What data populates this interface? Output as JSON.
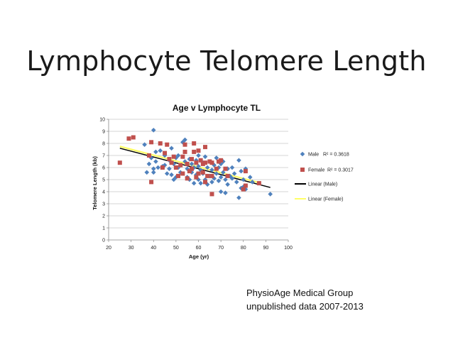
{
  "slide": {
    "title": "Lymphocyte Telomere Length",
    "footnote_line1": "PhysioAge Medical Group",
    "footnote_line2": "unpublished data 2007-2013"
  },
  "chart_data": {
    "type": "scatter",
    "title": "Age v Lymphocyte TL",
    "xlabel": "Age (yr)",
    "ylabel": "Telomere Length (kb)",
    "xlim": [
      20,
      100
    ],
    "ylim": [
      0,
      10
    ],
    "xticks": [
      20,
      30,
      40,
      50,
      60,
      70,
      80,
      90,
      100
    ],
    "yticks": [
      0,
      1,
      2,
      3,
      4,
      5,
      6,
      7,
      8,
      9,
      10
    ],
    "grid": "horizontal",
    "legend_position": "right",
    "series": [
      {
        "name": "Male",
        "r2_label": "R² = 0.3618",
        "marker": "diamond",
        "color": "#4F81BD",
        "points": [
          [
            40,
            9.1
          ],
          [
            36,
            7.9
          ],
          [
            37,
            5.6
          ],
          [
            38,
            6.3
          ],
          [
            39,
            6.8
          ],
          [
            40,
            5.9
          ],
          [
            40,
            5.6
          ],
          [
            41,
            6.5
          ],
          [
            41,
            7.3
          ],
          [
            42,
            6.0
          ],
          [
            43,
            7.4
          ],
          [
            44,
            6.1
          ],
          [
            45,
            7.0
          ],
          [
            45,
            6.2
          ],
          [
            46,
            5.5
          ],
          [
            47,
            6.6
          ],
          [
            47,
            5.9
          ],
          [
            48,
            7.6
          ],
          [
            48,
            5.4
          ],
          [
            49,
            6.3
          ],
          [
            49,
            5.0
          ],
          [
            50,
            6.8
          ],
          [
            50,
            5.2
          ],
          [
            51,
            7.0
          ],
          [
            51,
            6.0
          ],
          [
            52,
            5.6
          ],
          [
            53,
            8.1
          ],
          [
            54,
            8.3
          ],
          [
            54,
            6.5
          ],
          [
            55,
            5.9
          ],
          [
            55,
            5.2
          ],
          [
            56,
            6.7
          ],
          [
            56,
            5.0
          ],
          [
            57,
            6.3
          ],
          [
            57,
            5.6
          ],
          [
            58,
            6.0
          ],
          [
            58,
            4.7
          ],
          [
            59,
            6.6
          ],
          [
            59,
            5.4
          ],
          [
            60,
            7.0
          ],
          [
            60,
            6.1
          ],
          [
            60,
            5.0
          ],
          [
            61,
            5.8
          ],
          [
            61,
            4.7
          ],
          [
            62,
            6.4
          ],
          [
            62,
            5.5
          ],
          [
            63,
            6.9
          ],
          [
            63,
            5.0
          ],
          [
            64,
            6.0
          ],
          [
            64,
            4.6
          ],
          [
            65,
            6.5
          ],
          [
            65,
            5.3
          ],
          [
            66,
            5.8
          ],
          [
            66,
            4.8
          ],
          [
            67,
            6.2
          ],
          [
            67,
            5.1
          ],
          [
            68,
            6.8
          ],
          [
            68,
            5.5
          ],
          [
            69,
            6.0
          ],
          [
            69,
            4.9
          ],
          [
            70,
            6.3
          ],
          [
            70,
            5.2
          ],
          [
            70,
            4.0
          ],
          [
            71,
            6.5
          ],
          [
            71,
            5.6
          ],
          [
            72,
            5.0
          ],
          [
            72,
            3.9
          ],
          [
            73,
            5.9
          ],
          [
            73,
            4.6
          ],
          [
            74,
            5.3
          ],
          [
            75,
            6.0
          ],
          [
            75,
            5.1
          ],
          [
            76,
            5.5
          ],
          [
            77,
            4.8
          ],
          [
            78,
            6.6
          ],
          [
            78,
            3.5
          ],
          [
            79,
            5.7
          ],
          [
            79,
            4.3
          ],
          [
            80,
            5.0
          ],
          [
            80,
            4.4
          ],
          [
            81,
            5.9
          ],
          [
            81,
            4.2
          ],
          [
            83,
            5.2
          ],
          [
            84,
            4.8
          ],
          [
            92,
            3.8
          ]
        ]
      },
      {
        "name": "Female",
        "r2_label": "R² = 0.3017",
        "marker": "square",
        "color": "#C0504D",
        "points": [
          [
            25,
            6.4
          ],
          [
            29,
            8.4
          ],
          [
            31,
            8.5
          ],
          [
            38,
            7.0
          ],
          [
            39,
            8.1
          ],
          [
            39,
            4.8
          ],
          [
            43,
            8.0
          ],
          [
            44,
            6.0
          ],
          [
            45,
            7.2
          ],
          [
            46,
            7.9
          ],
          [
            47,
            6.7
          ],
          [
            48,
            6.4
          ],
          [
            49,
            6.9
          ],
          [
            50,
            6.0
          ],
          [
            51,
            5.3
          ],
          [
            52,
            6.2
          ],
          [
            53,
            6.9
          ],
          [
            53,
            5.5
          ],
          [
            54,
            7.3
          ],
          [
            54,
            7.9
          ],
          [
            55,
            6.3
          ],
          [
            55,
            5.1
          ],
          [
            56,
            5.7
          ],
          [
            57,
            5.9
          ],
          [
            57,
            6.7
          ],
          [
            58,
            7.3
          ],
          [
            58,
            8.0
          ],
          [
            59,
            6.4
          ],
          [
            59,
            5.2
          ],
          [
            60,
            7.4
          ],
          [
            60,
            5.5
          ],
          [
            61,
            6.6
          ],
          [
            62,
            6.3
          ],
          [
            62,
            5.6
          ],
          [
            63,
            7.7
          ],
          [
            63,
            6.4
          ],
          [
            63,
            4.8
          ],
          [
            64,
            5.3
          ],
          [
            65,
            6.5
          ],
          [
            66,
            6.4
          ],
          [
            66,
            5.3
          ],
          [
            66,
            3.8
          ],
          [
            68,
            5.9
          ],
          [
            69,
            6.5
          ],
          [
            70,
            6.6
          ],
          [
            72,
            5.9
          ],
          [
            73,
            5.3
          ],
          [
            80,
            4.2
          ],
          [
            81,
            5.7
          ],
          [
            81,
            4.5
          ],
          [
            87,
            4.7
          ]
        ]
      }
    ],
    "trendlines": [
      {
        "name": "Linear (Male)",
        "color": "#000000",
        "x": [
          25,
          92
        ],
        "y": [
          7.6,
          4.35
        ]
      },
      {
        "name": "Linear (Female)",
        "color": "#FFFF66",
        "x": [
          25,
          87
        ],
        "y": [
          7.75,
          4.75
        ]
      }
    ]
  }
}
